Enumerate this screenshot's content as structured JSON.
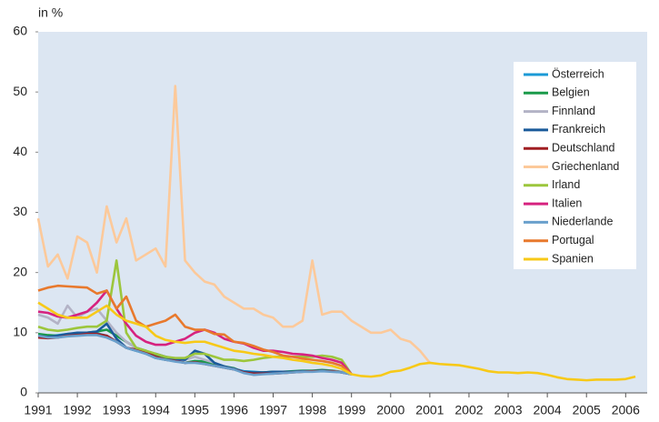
{
  "chart_data": {
    "type": "line",
    "y_label": "in %",
    "x": [
      1991,
      1991.25,
      1991.5,
      1991.75,
      1992,
      1992.25,
      1992.5,
      1992.75,
      1993,
      1993.25,
      1993.5,
      1993.75,
      1994,
      1994.25,
      1994.5,
      1994.75,
      1995,
      1995.25,
      1995.5,
      1995.75,
      1996,
      1996.25,
      1996.5,
      1996.75,
      1997,
      1997.25,
      1997.5,
      1997.75,
      1998,
      1998.25,
      1998.5,
      1998.75,
      1999,
      1999.25,
      1999.5,
      1999.75,
      2000,
      2000.25,
      2000.5,
      2000.75,
      2001,
      2001.25,
      2001.5,
      2001.75,
      2002,
      2002.25,
      2002.5,
      2002.75,
      2003,
      2003.25,
      2003.5,
      2003.75,
      2004,
      2004.25,
      2004.5,
      2004.75,
      2005,
      2005.25,
      2005.5,
      2005.75,
      2006,
      2006.25
    ],
    "xlim": [
      1991,
      2006.55
    ],
    "xticks": [
      1991,
      1992,
      1993,
      1994,
      1995,
      1996,
      1997,
      1998,
      1999,
      2000,
      2001,
      2002,
      2003,
      2004,
      2005,
      2006
    ],
    "ylim": [
      0,
      60
    ],
    "yticks": [
      0,
      10,
      20,
      30,
      40,
      50,
      60
    ],
    "series": [
      {
        "name": "Österreich",
        "color": "#1a9ad6",
        "values": [
          9.5,
          9.4,
          9.6,
          9.8,
          9.9,
          10,
          9.9,
          9.5,
          8.5,
          7.5,
          7,
          6.5,
          5.8,
          5.5,
          5.3,
          5,
          5.2,
          5,
          4.6,
          4.3,
          4,
          3.6,
          3.5,
          3.4,
          3.4,
          3.4,
          3.5,
          3.6,
          3.6,
          3.7,
          3.6,
          3.5,
          3.1,
          null,
          null,
          null,
          null,
          null,
          null,
          null,
          null,
          null,
          null,
          null,
          null,
          null,
          null,
          null,
          null,
          null,
          null,
          null,
          null,
          null,
          null,
          null,
          null,
          null,
          null,
          null,
          null,
          null
        ]
      },
      {
        "name": "Belgien",
        "color": "#1a9a4a",
        "values": [
          9.8,
          9.6,
          9.5,
          9.6,
          9.8,
          10,
          10.2,
          10.5,
          9.5,
          8.5,
          7.5,
          7,
          6.2,
          5.8,
          5.4,
          5,
          5.3,
          5.2,
          4.8,
          4.4,
          4.1,
          3.4,
          3.3,
          3.4,
          3.5,
          3.5,
          3.6,
          3.7,
          3.7,
          3.8,
          3.7,
          3.5,
          3.1,
          null,
          null,
          null,
          null,
          null,
          null,
          null,
          null,
          null,
          null,
          null,
          null,
          null,
          null,
          null,
          null,
          null,
          null,
          null,
          null,
          null,
          null,
          null,
          null,
          null,
          null,
          null,
          null,
          null
        ]
      },
      {
        "name": "Finnland",
        "color": "#b3b3c6",
        "values": [
          13,
          12.5,
          11.5,
          14.5,
          12.5,
          13.5,
          14,
          12,
          10,
          8.5,
          7.5,
          7,
          6,
          5.5,
          5.3,
          5.5,
          6,
          5.5,
          5,
          4.3,
          4,
          3.5,
          3,
          3.2,
          3.3,
          3.4,
          3.5,
          3.6,
          3.6,
          3.7,
          3.6,
          3.5,
          3.1,
          null,
          null,
          null,
          null,
          null,
          null,
          null,
          null,
          null,
          null,
          null,
          null,
          null,
          null,
          null,
          null,
          null,
          null,
          null,
          null,
          null,
          null,
          null,
          null,
          null,
          null,
          null,
          null,
          null
        ]
      },
      {
        "name": "Frankreich",
        "color": "#1a5a9a",
        "values": [
          9.5,
          9.3,
          9.5,
          9.8,
          10,
          10,
          10.2,
          11.5,
          9,
          7.5,
          7,
          6.8,
          6.5,
          6,
          5.6,
          5.5,
          7,
          6.5,
          5,
          4.4,
          4,
          3.5,
          3.4,
          3.4,
          3.5,
          3.5,
          3.5,
          3.6,
          3.6,
          3.7,
          3.6,
          3.4,
          3.1,
          null,
          null,
          null,
          null,
          null,
          null,
          null,
          null,
          null,
          null,
          null,
          null,
          null,
          null,
          null,
          null,
          null,
          null,
          null,
          null,
          null,
          null,
          null,
          null,
          null,
          null,
          null,
          null,
          null
        ]
      },
      {
        "name": "Deutschland",
        "color": "#a01e22",
        "values": [
          9.2,
          9.1,
          9.2,
          9.5,
          9.6,
          9.8,
          9.8,
          9.5,
          8.5,
          7.5,
          7.2,
          6.8,
          6,
          5.5,
          5.3,
          5,
          5.1,
          4.8,
          4.5,
          4.2,
          3.9,
          3.4,
          3.2,
          3.2,
          3.2,
          3.3,
          3.4,
          3.5,
          3.6,
          3.6,
          3.6,
          3.4,
          3.1,
          null,
          null,
          null,
          null,
          null,
          null,
          null,
          null,
          null,
          null,
          null,
          null,
          null,
          null,
          null,
          null,
          null,
          null,
          null,
          null,
          null,
          null,
          null,
          null,
          null,
          null,
          null,
          null,
          null
        ]
      },
      {
        "name": "Griechenland",
        "color": "#fcc99a",
        "values": [
          29,
          21,
          23,
          19,
          26,
          25,
          20,
          31,
          25,
          29,
          22,
          23,
          24,
          21,
          51,
          22,
          20,
          18.5,
          18,
          16,
          15,
          14,
          14,
          13,
          12.5,
          11,
          11,
          12,
          22,
          13,
          13.5,
          13.5,
          12,
          11,
          10,
          10,
          10.5,
          9,
          8.5,
          7,
          5,
          null,
          null,
          null,
          null,
          null,
          null,
          null,
          null,
          null,
          null,
          null,
          null,
          null,
          null,
          null,
          null,
          null,
          null,
          null,
          null,
          null
        ]
      },
      {
        "name": "Irland",
        "color": "#9cc63c",
        "values": [
          11,
          10.5,
          10.3,
          10.5,
          10.8,
          11,
          11,
          12,
          22,
          10,
          7.5,
          7,
          6.5,
          6,
          5.8,
          5.8,
          6.5,
          6.5,
          6,
          5.5,
          5.5,
          5.3,
          5.5,
          5.8,
          6,
          6,
          6,
          6,
          6,
          6.2,
          6,
          5.5,
          3.1,
          null,
          null,
          null,
          null,
          null,
          null,
          null,
          null,
          null,
          null,
          null,
          null,
          null,
          null,
          null,
          null,
          null,
          null,
          null,
          null,
          null,
          null,
          null,
          null,
          null,
          null,
          null,
          null,
          null
        ]
      },
      {
        "name": "Italien",
        "color": "#d6227f",
        "values": [
          13.5,
          13.3,
          12.7,
          12.5,
          13,
          13.5,
          15,
          17,
          14,
          11.5,
          9.5,
          8.5,
          8,
          8,
          8.5,
          9,
          10,
          10.5,
          10,
          9,
          8.5,
          8.2,
          7.5,
          7,
          7,
          6.8,
          6.5,
          6.4,
          6.2,
          5.8,
          5.5,
          5,
          3.1,
          null,
          null,
          null,
          null,
          null,
          null,
          null,
          null,
          null,
          null,
          null,
          null,
          null,
          null,
          null,
          null,
          null,
          null,
          null,
          null,
          null,
          null,
          null,
          null,
          null,
          null,
          null,
          null,
          null
        ]
      },
      {
        "name": "Niederlande",
        "color": "#6aa0cc",
        "values": [
          9.5,
          9.2,
          9.2,
          9.4,
          9.5,
          9.6,
          9.6,
          9.2,
          8.5,
          7.5,
          7,
          6.5,
          5.8,
          5.5,
          5.2,
          5,
          5,
          4.8,
          4.5,
          4.2,
          3.9,
          3.3,
          3,
          3.1,
          3.2,
          3.3,
          3.4,
          3.5,
          3.5,
          3.6,
          3.5,
          3.4,
          3.1,
          null,
          null,
          null,
          null,
          null,
          null,
          null,
          null,
          null,
          null,
          null,
          null,
          null,
          null,
          null,
          null,
          null,
          null,
          null,
          null,
          null,
          null,
          null,
          null,
          null,
          null,
          null,
          null,
          null
        ]
      },
      {
        "name": "Portugal",
        "color": "#e8792d",
        "values": [
          17,
          17.5,
          17.8,
          17.7,
          17.6,
          17.5,
          16.5,
          17,
          14,
          16,
          12,
          11,
          11.5,
          12,
          13,
          11,
          10.5,
          10.5,
          9.8,
          9.7,
          8.5,
          8.3,
          7.8,
          7.2,
          6.8,
          6.2,
          6,
          5.7,
          5.5,
          5.3,
          5,
          4.5,
          3.1,
          null,
          null,
          null,
          null,
          null,
          null,
          null,
          null,
          null,
          null,
          null,
          null,
          null,
          null,
          null,
          null,
          null,
          null,
          null,
          null,
          null,
          null,
          null,
          null,
          null,
          null,
          null,
          null,
          null
        ]
      },
      {
        "name": "Spanien",
        "color": "#f7c918",
        "values": [
          15,
          14,
          13,
          12.5,
          12.5,
          12.5,
          13.5,
          14.5,
          13,
          12,
          11.5,
          11,
          9.5,
          8.8,
          8.5,
          8.3,
          8.5,
          8.5,
          8,
          7.5,
          7,
          6.8,
          6.5,
          6.3,
          6,
          5.8,
          5.5,
          5.3,
          5,
          4.8,
          4.5,
          4,
          3.1,
          2.8,
          2.7,
          2.9,
          3.5,
          3.7,
          4.2,
          4.8,
          5,
          4.8,
          4.7,
          4.6,
          4.3,
          4,
          3.6,
          3.4,
          3.4,
          3.3,
          3.4,
          3.3,
          3,
          2.6,
          2.3,
          2.2,
          2.1,
          2.2,
          2.2,
          2.2,
          2.3,
          2.7
        ]
      }
    ]
  }
}
